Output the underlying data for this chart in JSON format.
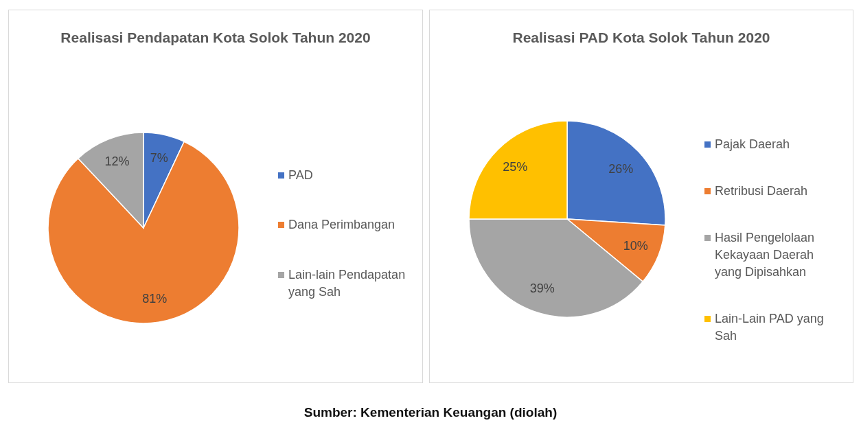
{
  "chart_data": [
    {
      "type": "pie",
      "title": "Realisasi Pendapatan Kota Solok Tahun 2020",
      "categories": [
        "PAD",
        "Dana Perimbangan",
        "Lain-lain Pendapatan yang Sah"
      ],
      "values": [
        7,
        81,
        12
      ],
      "colors": [
        "#4472c4",
        "#ed7d31",
        "#a5a5a5"
      ],
      "value_labels": [
        "7%",
        "81%",
        "12%"
      ],
      "legend": "right"
    },
    {
      "type": "pie",
      "title": "Realisasi PAD Kota Solok Tahun 2020",
      "categories": [
        "Pajak Daerah",
        "Retribusi Daerah",
        "Hasil Pengelolaan Kekayaan Daerah yang Dipisahkan",
        "Lain-Lain PAD yang Sah"
      ],
      "values": [
        26,
        10,
        39,
        25
      ],
      "colors": [
        "#4472c4",
        "#ed7d31",
        "#a5a5a5",
        "#ffc000"
      ],
      "value_labels": [
        "26%",
        "10%",
        "39%",
        "25%"
      ],
      "legend": "right",
      "annotations": [
        "Sumber: Kementerian Keuangan (diolah)"
      ]
    }
  ]
}
